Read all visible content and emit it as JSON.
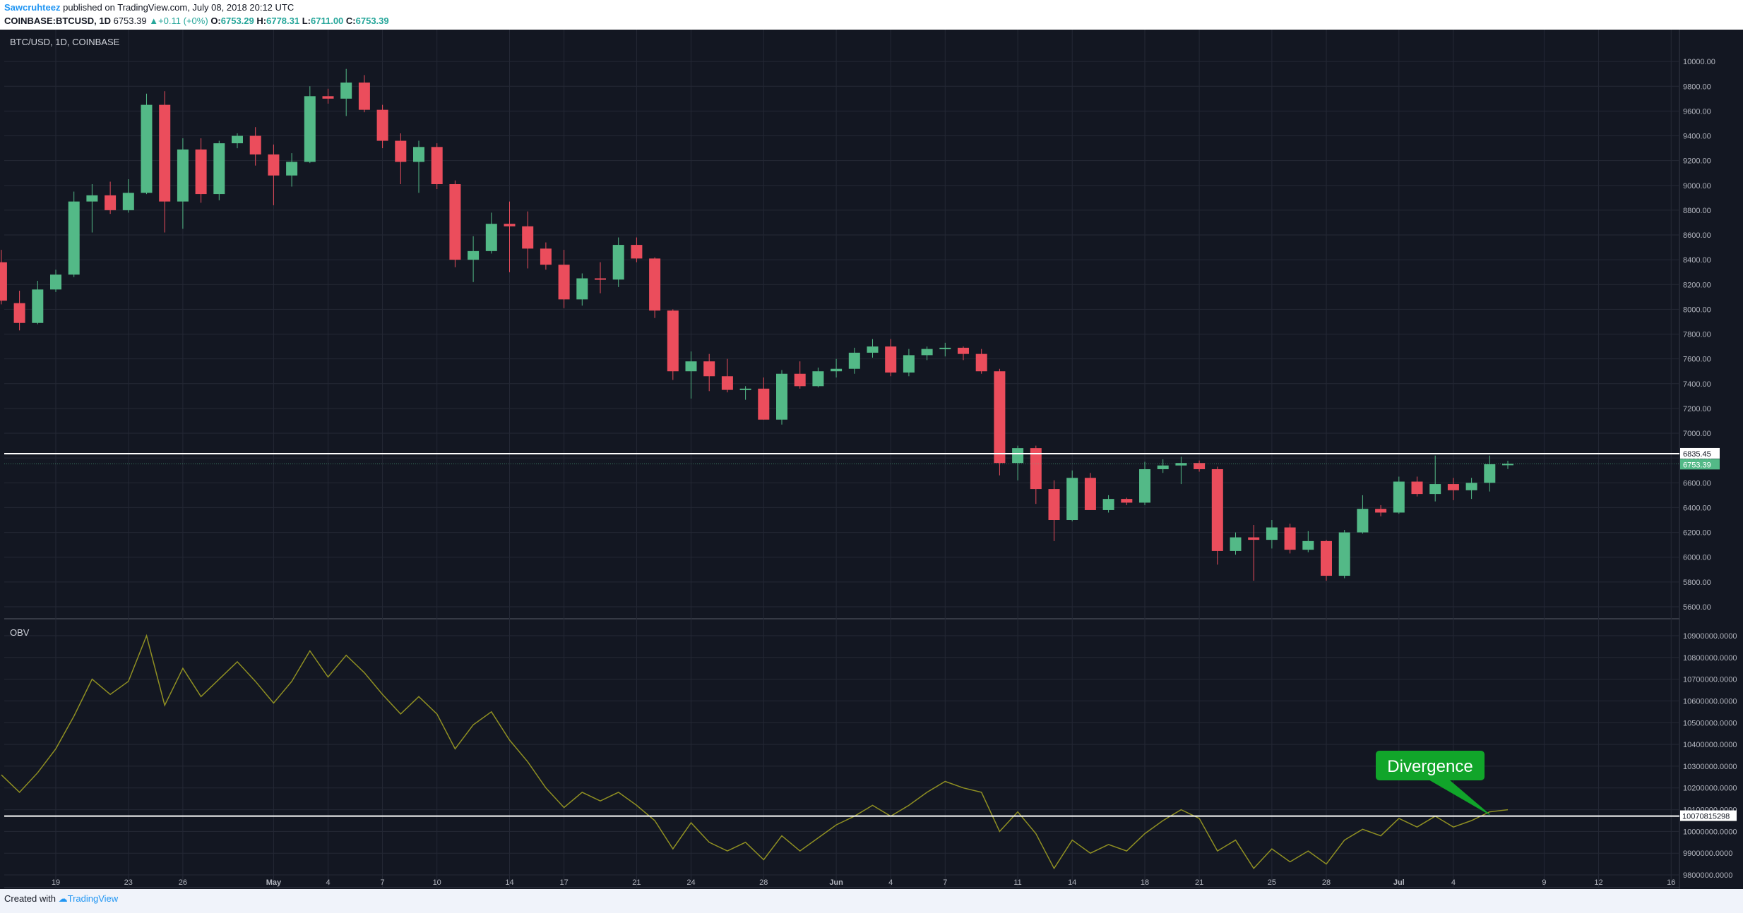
{
  "header": {
    "author": "Sawcruhteez",
    "published": "published on TradingView.com, July 08, 2018 20:12 UTC",
    "symbol": "COINBASE:BTCUSD, 1D",
    "last": "6753.39",
    "change": "+0.11 (+0%)",
    "o_label": "O:",
    "o": "6753.29",
    "h_label": "H:",
    "h": "6778.31",
    "l_label": "L:",
    "l": "6711.00",
    "c_label": "C:",
    "c": "6753.39"
  },
  "footer": {
    "created_with": "Created with",
    "brand": "TradingView"
  },
  "colors": {
    "bg": "#131722",
    "up": "#53b987",
    "down": "#eb4d5c",
    "obv": "#8f8f22",
    "grid": "#242835",
    "text": "#b2b5be",
    "annotation": "#11a52a"
  },
  "chart_data": [
    {
      "type": "candlestick",
      "title": "BTC/USD, 1D, COINBASE",
      "ylim": [
        5520,
        10200
      ],
      "yticks": [
        5600,
        5800,
        6000,
        6200,
        6400,
        6600,
        6800,
        7000,
        7200,
        7400,
        7600,
        7800,
        8000,
        8200,
        8400,
        8600,
        8800,
        9000,
        9200,
        9400,
        9600,
        9800,
        10000
      ],
      "tick_decimals": 2,
      "horizontal_line": {
        "value": 6835.45,
        "label": "6835.45"
      },
      "last_price": {
        "value": 6753.39,
        "label": "6753.39"
      },
      "candles": [
        {
          "x": 0,
          "o": 8380,
          "h": 8480,
          "l": 8040,
          "c": 8070
        },
        {
          "x": 1,
          "o": 8050,
          "h": 8150,
          "l": 7830,
          "c": 7890
        },
        {
          "x": 2,
          "o": 7890,
          "h": 8230,
          "l": 7880,
          "c": 8160
        },
        {
          "x": 3,
          "o": 8160,
          "h": 8320,
          "l": 8140,
          "c": 8280
        },
        {
          "x": 4,
          "o": 8280,
          "h": 8950,
          "l": 8260,
          "c": 8870
        },
        {
          "x": 5,
          "o": 8870,
          "h": 9010,
          "l": 8620,
          "c": 8920
        },
        {
          "x": 6,
          "o": 8920,
          "h": 9030,
          "l": 8770,
          "c": 8800
        },
        {
          "x": 7,
          "o": 8800,
          "h": 9050,
          "l": 8780,
          "c": 8940
        },
        {
          "x": 8,
          "o": 8940,
          "h": 9740,
          "l": 8930,
          "c": 9650
        },
        {
          "x": 9,
          "o": 9650,
          "h": 9760,
          "l": 8620,
          "c": 8870
        },
        {
          "x": 10,
          "o": 8870,
          "h": 9380,
          "l": 8650,
          "c": 9290
        },
        {
          "x": 11,
          "o": 9290,
          "h": 9380,
          "l": 8860,
          "c": 8930
        },
        {
          "x": 12,
          "o": 8930,
          "h": 9360,
          "l": 8880,
          "c": 9340
        },
        {
          "x": 13,
          "o": 9340,
          "h": 9420,
          "l": 9300,
          "c": 9400
        },
        {
          "x": 14,
          "o": 9400,
          "h": 9470,
          "l": 9160,
          "c": 9250
        },
        {
          "x": 15,
          "o": 9250,
          "h": 9330,
          "l": 8840,
          "c": 9080
        },
        {
          "x": 16,
          "o": 9080,
          "h": 9260,
          "l": 8990,
          "c": 9190
        },
        {
          "x": 17,
          "o": 9190,
          "h": 9800,
          "l": 9180,
          "c": 9720
        },
        {
          "x": 18,
          "o": 9720,
          "h": 9780,
          "l": 9660,
          "c": 9700
        },
        {
          "x": 19,
          "o": 9700,
          "h": 9940,
          "l": 9560,
          "c": 9830
        },
        {
          "x": 20,
          "o": 9830,
          "h": 9890,
          "l": 9590,
          "c": 9610
        },
        {
          "x": 21,
          "o": 9610,
          "h": 9650,
          "l": 9300,
          "c": 9360
        },
        {
          "x": 22,
          "o": 9360,
          "h": 9420,
          "l": 9010,
          "c": 9190
        },
        {
          "x": 23,
          "o": 9190,
          "h": 9360,
          "l": 8940,
          "c": 9310
        },
        {
          "x": 24,
          "o": 9310,
          "h": 9340,
          "l": 8970,
          "c": 9010
        },
        {
          "x": 25,
          "o": 9010,
          "h": 9040,
          "l": 8340,
          "c": 8400
        },
        {
          "x": 26,
          "o": 8400,
          "h": 8590,
          "l": 8220,
          "c": 8470
        },
        {
          "x": 27,
          "o": 8470,
          "h": 8780,
          "l": 8450,
          "c": 8690
        },
        {
          "x": 28,
          "o": 8690,
          "h": 8870,
          "l": 8300,
          "c": 8670
        },
        {
          "x": 29,
          "o": 8670,
          "h": 8790,
          "l": 8330,
          "c": 8490
        },
        {
          "x": 30,
          "o": 8490,
          "h": 8540,
          "l": 8320,
          "c": 8360
        },
        {
          "x": 31,
          "o": 8360,
          "h": 8480,
          "l": 8010,
          "c": 8080
        },
        {
          "x": 32,
          "o": 8080,
          "h": 8290,
          "l": 8030,
          "c": 8250
        },
        {
          "x": 33,
          "o": 8250,
          "h": 8380,
          "l": 8130,
          "c": 8240
        },
        {
          "x": 34,
          "o": 8240,
          "h": 8580,
          "l": 8180,
          "c": 8520
        },
        {
          "x": 35,
          "o": 8520,
          "h": 8580,
          "l": 8380,
          "c": 8410
        },
        {
          "x": 36,
          "o": 8410,
          "h": 8420,
          "l": 7930,
          "c": 7990
        },
        {
          "x": 37,
          "o": 7990,
          "h": 8000,
          "l": 7430,
          "c": 7500
        },
        {
          "x": 38,
          "o": 7500,
          "h": 7660,
          "l": 7280,
          "c": 7580
        },
        {
          "x": 39,
          "o": 7580,
          "h": 7640,
          "l": 7340,
          "c": 7460
        },
        {
          "x": 40,
          "o": 7460,
          "h": 7600,
          "l": 7330,
          "c": 7350
        },
        {
          "x": 41,
          "o": 7350,
          "h": 7380,
          "l": 7270,
          "c": 7360
        },
        {
          "x": 42,
          "o": 7360,
          "h": 7450,
          "l": 7110,
          "c": 7110
        },
        {
          "x": 43,
          "o": 7110,
          "h": 7510,
          "l": 7070,
          "c": 7480
        },
        {
          "x": 44,
          "o": 7480,
          "h": 7580,
          "l": 7360,
          "c": 7380
        },
        {
          "x": 45,
          "o": 7380,
          "h": 7530,
          "l": 7370,
          "c": 7500
        },
        {
          "x": 46,
          "o": 7500,
          "h": 7600,
          "l": 7450,
          "c": 7520
        },
        {
          "x": 47,
          "o": 7520,
          "h": 7690,
          "l": 7480,
          "c": 7650
        },
        {
          "x": 48,
          "o": 7650,
          "h": 7760,
          "l": 7610,
          "c": 7700
        },
        {
          "x": 49,
          "o": 7700,
          "h": 7760,
          "l": 7460,
          "c": 7490
        },
        {
          "x": 50,
          "o": 7490,
          "h": 7680,
          "l": 7460,
          "c": 7630
        },
        {
          "x": 51,
          "o": 7630,
          "h": 7700,
          "l": 7590,
          "c": 7680
        },
        {
          "x": 52,
          "o": 7680,
          "h": 7730,
          "l": 7620,
          "c": 7690
        },
        {
          "x": 53,
          "o": 7690,
          "h": 7700,
          "l": 7590,
          "c": 7640
        },
        {
          "x": 54,
          "o": 7640,
          "h": 7680,
          "l": 7480,
          "c": 7500
        },
        {
          "x": 55,
          "o": 7500,
          "h": 7520,
          "l": 6660,
          "c": 6760
        },
        {
          "x": 56,
          "o": 6760,
          "h": 6900,
          "l": 6620,
          "c": 6880
        },
        {
          "x": 57,
          "o": 6880,
          "h": 6900,
          "l": 6430,
          "c": 6550
        },
        {
          "x": 58,
          "o": 6550,
          "h": 6620,
          "l": 6130,
          "c": 6300
        },
        {
          "x": 59,
          "o": 6300,
          "h": 6700,
          "l": 6290,
          "c": 6640
        },
        {
          "x": 60,
          "o": 6640,
          "h": 6680,
          "l": 6380,
          "c": 6380
        },
        {
          "x": 61,
          "o": 6380,
          "h": 6500,
          "l": 6360,
          "c": 6470
        },
        {
          "x": 62,
          "o": 6470,
          "h": 6480,
          "l": 6420,
          "c": 6440
        },
        {
          "x": 63,
          "o": 6440,
          "h": 6770,
          "l": 6420,
          "c": 6710
        },
        {
          "x": 64,
          "o": 6710,
          "h": 6790,
          "l": 6680,
          "c": 6740
        },
        {
          "x": 65,
          "o": 6740,
          "h": 6810,
          "l": 6590,
          "c": 6760
        },
        {
          "x": 66,
          "o": 6760,
          "h": 6780,
          "l": 6690,
          "c": 6710
        },
        {
          "x": 67,
          "o": 6710,
          "h": 6730,
          "l": 5940,
          "c": 6050
        },
        {
          "x": 68,
          "o": 6050,
          "h": 6200,
          "l": 6020,
          "c": 6160
        },
        {
          "x": 69,
          "o": 6160,
          "h": 6260,
          "l": 5810,
          "c": 6140
        },
        {
          "x": 70,
          "o": 6140,
          "h": 6300,
          "l": 6070,
          "c": 6240
        },
        {
          "x": 71,
          "o": 6240,
          "h": 6270,
          "l": 6030,
          "c": 6060
        },
        {
          "x": 72,
          "o": 6060,
          "h": 6210,
          "l": 6040,
          "c": 6130
        },
        {
          "x": 73,
          "o": 6130,
          "h": 6140,
          "l": 5810,
          "c": 5850
        },
        {
          "x": 74,
          "o": 5850,
          "h": 6220,
          "l": 5830,
          "c": 6200
        },
        {
          "x": 75,
          "o": 6200,
          "h": 6500,
          "l": 6190,
          "c": 6390
        },
        {
          "x": 76,
          "o": 6390,
          "h": 6420,
          "l": 6330,
          "c": 6360
        },
        {
          "x": 77,
          "o": 6360,
          "h": 6650,
          "l": 6350,
          "c": 6610
        },
        {
          "x": 78,
          "o": 6610,
          "h": 6650,
          "l": 6490,
          "c": 6510
        },
        {
          "x": 79,
          "o": 6510,
          "h": 6820,
          "l": 6450,
          "c": 6590
        },
        {
          "x": 80,
          "o": 6590,
          "h": 6640,
          "l": 6460,
          "c": 6540
        },
        {
          "x": 81,
          "o": 6540,
          "h": 6640,
          "l": 6470,
          "c": 6600
        },
        {
          "x": 82,
          "o": 6600,
          "h": 6820,
          "l": 6530,
          "c": 6750
        },
        {
          "x": 83,
          "o": 6753.29,
          "h": 6778.31,
          "l": 6711.0,
          "c": 6753.39
        }
      ]
    },
    {
      "type": "line",
      "title": "OBV",
      "ylim": [
        9745000,
        10955000
      ],
      "yticks": [
        9800000,
        9900000,
        10000000,
        10100000,
        10200000,
        10300000,
        10400000,
        10500000,
        10600000,
        10700000,
        10800000,
        10900000
      ],
      "tick_decimals": 4,
      "horizontal_line": {
        "value": 10070815298,
        "label": "10070815298"
      },
      "series": [
        {
          "values": [
            10260000,
            10180000,
            10270000,
            10380000,
            10530000,
            10700000,
            10630000,
            10690000,
            10900000,
            10580000,
            10750000,
            10620000,
            10700000,
            10780000,
            10690000,
            10590000,
            10690000,
            10830000,
            10710000,
            10810000,
            10730000,
            10630000,
            10540000,
            10620000,
            10540000,
            10380000,
            10490000,
            10550000,
            10420000,
            10320000,
            10200000,
            10110000,
            10180000,
            10140000,
            10180000,
            10120000,
            10050000,
            9920000,
            10040000,
            9950000,
            9910000,
            9950000,
            9870000,
            9980000,
            9910000,
            9970000,
            10030000,
            10070000,
            10120000,
            10070000,
            10120000,
            10180000,
            10230000,
            10200000,
            10180000,
            10000000,
            10090000,
            9990000,
            9830000,
            9960000,
            9900000,
            9940000,
            9910000,
            9990000,
            10050000,
            10100000,
            10060000,
            9910000,
            9960000,
            9830000,
            9920000,
            9860000,
            9910000,
            9850000,
            9960000,
            10010000,
            9980000,
            10060000,
            10020000,
            10070000,
            10020000,
            10050000,
            10090000,
            10100000
          ]
        }
      ]
    }
  ],
  "x_axis": {
    "labels": [
      "19",
      "23",
      "26",
      "May",
      "4",
      "7",
      "10",
      "14",
      "17",
      "21",
      "24",
      "28",
      "Jun",
      "4",
      "7",
      "11",
      "14",
      "18",
      "21",
      "25",
      "28",
      "Jul",
      "4",
      "9",
      "12",
      "16"
    ],
    "bold": [
      "May",
      "Jun",
      "Jul"
    ],
    "index": [
      3,
      7,
      10,
      15,
      18,
      21,
      24,
      28,
      31,
      35,
      38,
      42,
      46,
      49,
      52,
      56,
      59,
      63,
      66,
      70,
      73,
      77,
      80,
      85,
      88,
      92
    ]
  },
  "annotation": {
    "text": "Divergence"
  }
}
